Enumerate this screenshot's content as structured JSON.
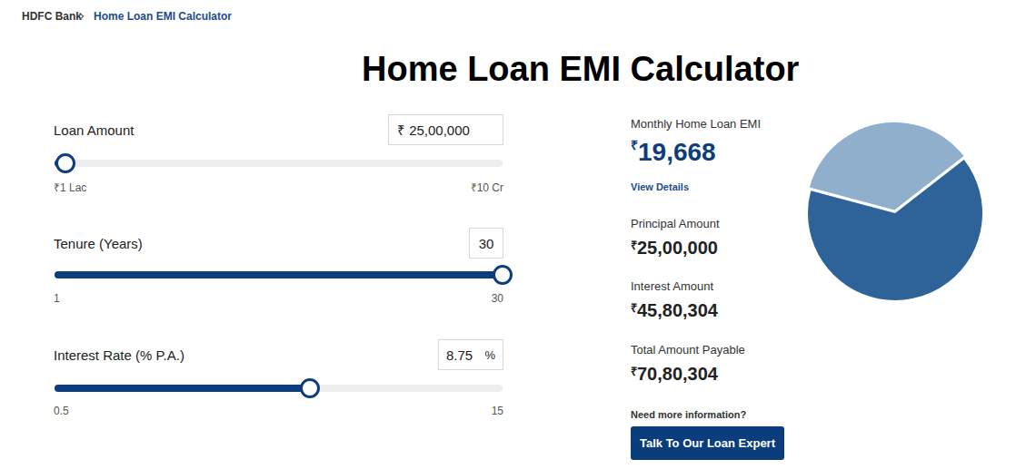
{
  "breadcrumb": [
    "HDFC Bank",
    "Home Loan EMI Calculator"
  ],
  "title": "Home Loan EMI Calculator",
  "inputs": [
    {
      "label": "Loan Amount",
      "value": 2500000,
      "value_label": "₹ 25,00,000",
      "min": {
        "value": 100000,
        "label": "₹1 Lac"
      },
      "max": {
        "value": 100000000,
        "label": "₹10 Cr"
      }
    },
    {
      "label": "Tenure (Years)",
      "value": 30,
      "min": 1,
      "max": 30
    },
    {
      "label": "Interest Rate (% P.A.)",
      "value": 8.75,
      "unit": "%",
      "min": 0.5,
      "max": 15
    }
  ],
  "results": [
    {
      "label": "Monthly Home Loan EMI",
      "symbol": "₹",
      "amount": "19,668",
      "link": "View Details"
    },
    {
      "label": "Principal Amount",
      "symbol": "₹",
      "amount": "25,00,000"
    },
    {
      "label": "Interest Amount",
      "symbol": "₹",
      "amount": "45,80,304"
    },
    {
      "label": "Total Amount Payable",
      "symbol": "₹",
      "amount": "70,80,304"
    }
  ],
  "help": {
    "text": "Need more information?",
    "button": "Talk To Our Loan Expert"
  },
  "chart_data": {
    "type": "pie",
    "values": [
      2500000,
      4580304
    ],
    "colors": [
      "#8fafcd",
      "#2e6399"
    ]
  }
}
